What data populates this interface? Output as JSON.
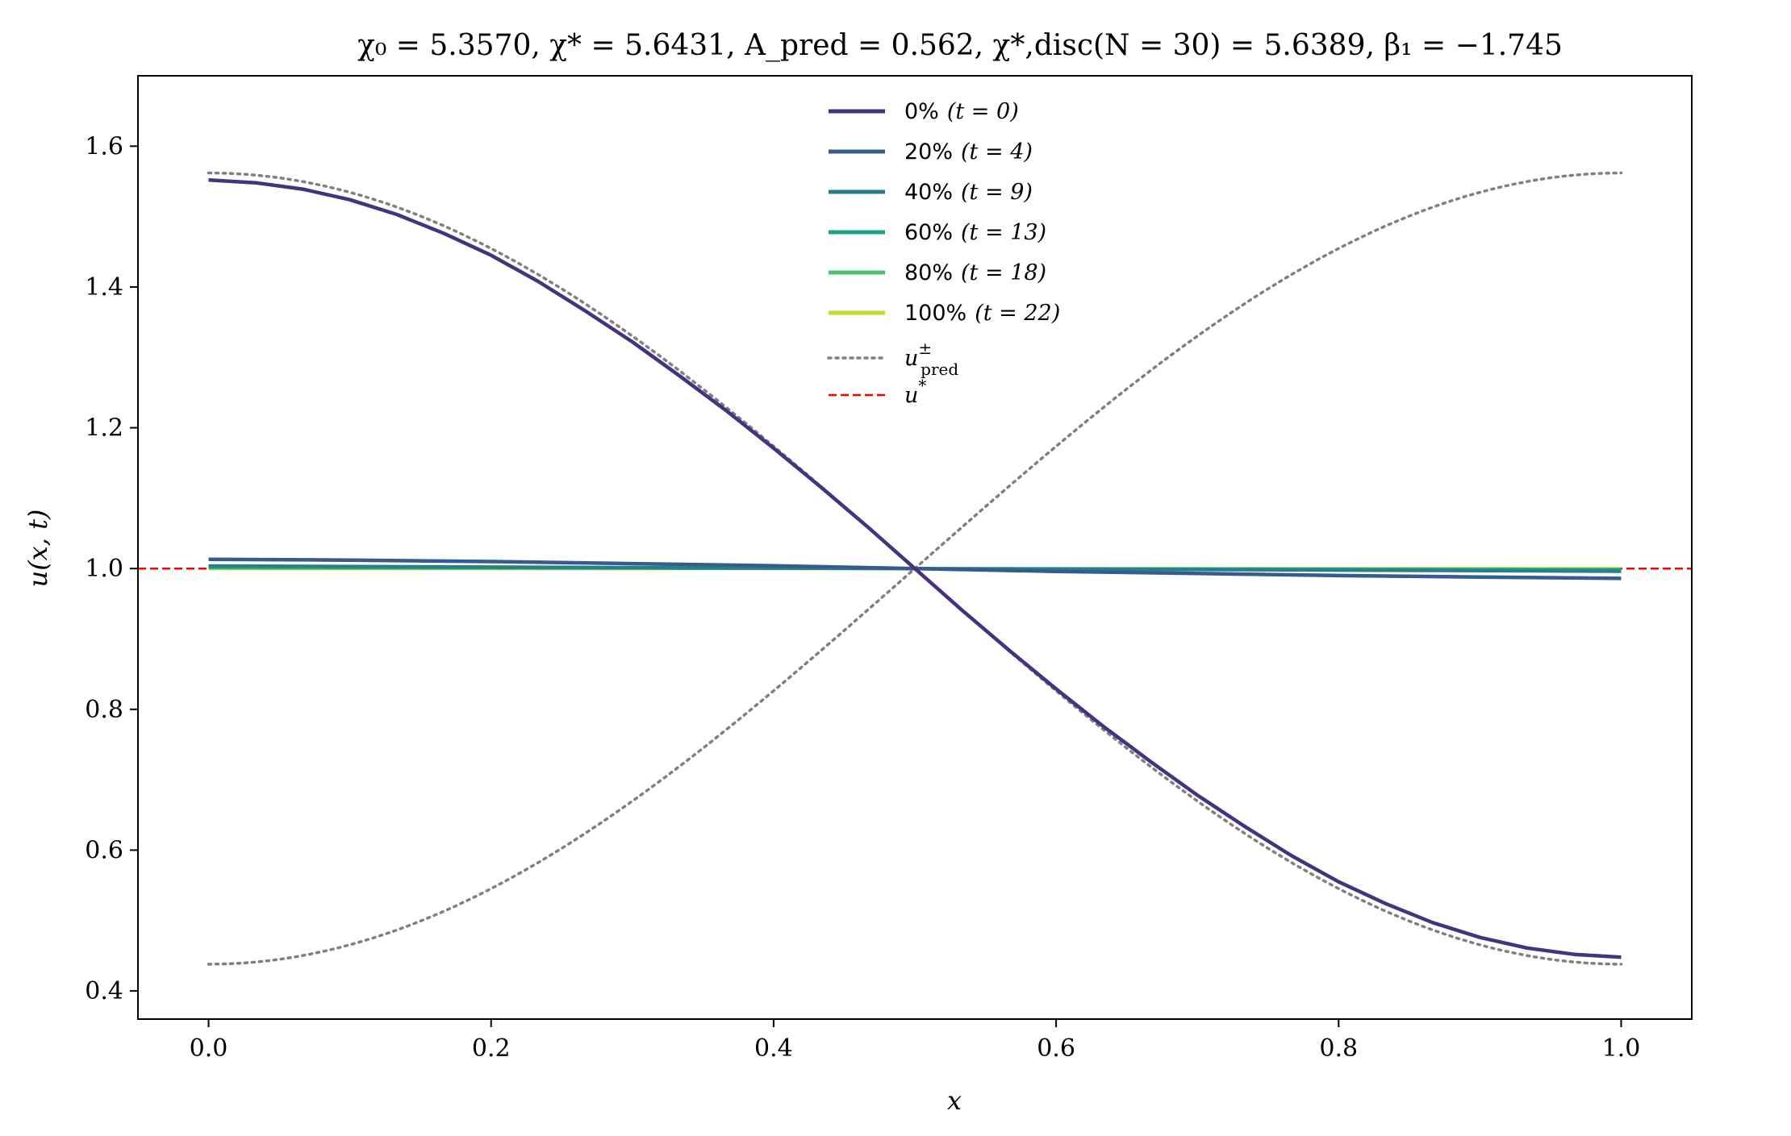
{
  "chart_data": {
    "type": "line",
    "title": "χ₀ = 5.3570,  χ* = 5.6431,  A_pred = 0.562,  χ*,disc(N = 30) = 5.6389,  β₁ = −1.745",
    "xlabel": "x",
    "ylabel": "u(x, t)",
    "xlim": [
      -0.05,
      1.05
    ],
    "ylim": [
      0.36,
      1.7
    ],
    "xticks": [
      "0.0",
      "0.2",
      "0.4",
      "0.6",
      "0.8",
      "1.0"
    ],
    "yticks": [
      "0.4",
      "0.6",
      "0.8",
      "1.0",
      "1.2",
      "1.4",
      "1.6"
    ],
    "grid": false,
    "legend_position": "top-center",
    "colors": {
      "s0": "#46327e",
      "s20": "#365c8d",
      "s40": "#277f8e",
      "s60": "#1fa187",
      "s80": "#4ac16d",
      "s100": "#bddf26",
      "pred": "#808080",
      "ustar": "#ff0000"
    },
    "series": [
      {
        "name": "0% (t = 0)",
        "x": [
          0.0,
          0.0333,
          0.0667,
          0.1,
          0.1333,
          0.1667,
          0.2,
          0.2333,
          0.2667,
          0.3,
          0.3333,
          0.3667,
          0.4,
          0.4333,
          0.4667,
          0.5,
          0.5333,
          0.5667,
          0.6,
          0.6333,
          0.6667,
          0.7,
          0.7333,
          0.7667,
          0.8,
          0.8333,
          0.8667,
          0.9,
          0.9333,
          0.9667,
          1.0
        ],
        "y": [
          1.552,
          1.548,
          1.539,
          1.524,
          1.503,
          1.476,
          1.445,
          1.408,
          1.366,
          1.322,
          1.274,
          1.224,
          1.171,
          1.116,
          1.059,
          1.0,
          0.941,
          0.884,
          0.829,
          0.776,
          0.726,
          0.678,
          0.634,
          0.592,
          0.555,
          0.524,
          0.497,
          0.476,
          0.461,
          0.452,
          0.448
        ]
      },
      {
        "name": "20% (t = 4)",
        "x": [
          0.0,
          0.1,
          0.2,
          0.3,
          0.4,
          0.5,
          0.6,
          0.7,
          0.8,
          0.9,
          1.0
        ],
        "y": [
          1.013,
          1.012,
          1.01,
          1.007,
          1.004,
          1.0,
          0.996,
          0.993,
          0.99,
          0.988,
          0.986
        ]
      },
      {
        "name": "40% (t = 9)",
        "x": [
          0.0,
          0.5,
          1.0
        ],
        "y": [
          1.004,
          1.0,
          0.996
        ]
      },
      {
        "name": "60% (t = 13)",
        "x": [
          0.0,
          0.5,
          1.0
        ],
        "y": [
          1.002,
          1.0,
          0.998
        ]
      },
      {
        "name": "80% (t = 18)",
        "x": [
          0.0,
          0.5,
          1.0
        ],
        "y": [
          1.001,
          1.0,
          0.999
        ]
      },
      {
        "name": "100% (t = 22)",
        "x": [
          0.0,
          0.5,
          1.0
        ],
        "y": [
          1.0,
          1.0,
          1.0
        ]
      },
      {
        "name": "u±pred",
        "style": "dotted",
        "branches": [
          {
            "x": [
              0.0,
              1.0
            ],
            "amplitude": 0.562,
            "shape": "cosine",
            "y_start": 1.562,
            "y_end": 0.438
          },
          {
            "x": [
              0.0,
              1.0
            ],
            "amplitude": -0.562,
            "shape": "cosine",
            "y_start": 0.438,
            "y_end": 1.562
          }
        ]
      },
      {
        "name": "u*",
        "style": "dashed",
        "y": 1.0
      }
    ]
  },
  "legend": {
    "items": [
      {
        "pct": "0%",
        "t": "(t = 0)"
      },
      {
        "pct": "20%",
        "t": "(t = 4)"
      },
      {
        "pct": "40%",
        "t": "(t = 9)"
      },
      {
        "pct": "60%",
        "t": "(t = 13)"
      },
      {
        "pct": "80%",
        "t": "(t = 18)"
      },
      {
        "pct": "100%",
        "t": "(t = 22)"
      }
    ],
    "pred_label": "u",
    "pred_sup": "±",
    "pred_sub": "pred",
    "ustar_label": "u",
    "ustar_sup": "*"
  }
}
